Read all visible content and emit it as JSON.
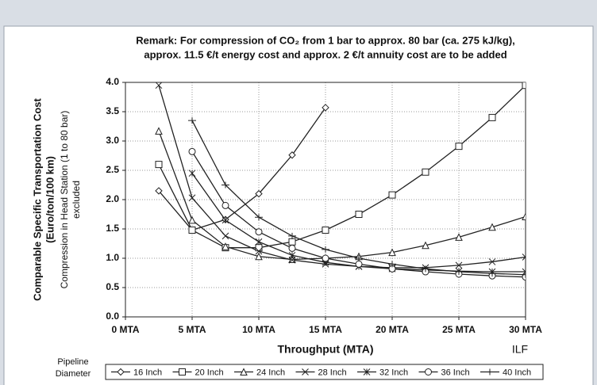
{
  "chart_data": {
    "type": "line",
    "title": [
      "Remark: For compression of CO₂ from 1 bar to approx. 80 bar (ca. 275 kJ/kg),",
      "approx. 11.5 €/t energy cost and approx. 2 €/t annuity cost are to be added"
    ],
    "ylabel": [
      "Comparable Specific Transportation Cost",
      "(Euro/ton/100 km)"
    ],
    "ylabel_note": [
      "Compression in Head Station (1 to 80 bar)",
      "excluded"
    ],
    "xlabel": "Throughput (MTA)",
    "annotation": "ILF",
    "legend_title": [
      "Pipeline",
      "Diameter"
    ],
    "x": [
      2.5,
      5,
      7.5,
      10,
      12.5,
      15,
      17.5,
      20,
      22.5,
      25,
      27.5,
      30
    ],
    "series": [
      {
        "name": "16 Inch",
        "marker": "diamond",
        "color": "#222222",
        "values": [
          2.15,
          1.48,
          1.66,
          2.1,
          2.76,
          3.57,
          null,
          null,
          null,
          null,
          null,
          null
        ]
      },
      {
        "name": "20 Inch",
        "marker": "square",
        "color": "#222222",
        "values": [
          2.6,
          1.48,
          1.18,
          1.18,
          1.28,
          1.48,
          1.75,
          2.08,
          2.47,
          2.91,
          3.4,
          3.95
        ]
      },
      {
        "name": "24 Inch",
        "marker": "triangle",
        "color": "#222222",
        "values": [
          3.17,
          1.65,
          1.2,
          1.03,
          0.98,
          1.0,
          1.03,
          1.1,
          1.22,
          1.36,
          1.53,
          1.71
        ]
      },
      {
        "name": "28 Inch",
        "marker": "x",
        "color": "#222222",
        "values": [
          3.95,
          2.03,
          1.38,
          1.12,
          0.97,
          0.9,
          0.86,
          0.84,
          0.84,
          0.88,
          0.94,
          1.02
        ]
      },
      {
        "name": "32 Inch",
        "marker": "star",
        "color": "#222222",
        "values": [
          null,
          2.45,
          1.65,
          1.28,
          1.05,
          0.93,
          0.86,
          0.82,
          0.8,
          0.78,
          0.77,
          0.77
        ]
      },
      {
        "name": "36 Inch",
        "marker": "circle",
        "color": "#222222",
        "values": [
          null,
          2.82,
          1.9,
          1.45,
          1.17,
          1.0,
          0.9,
          0.82,
          0.77,
          0.73,
          0.7,
          0.68
        ]
      },
      {
        "name": "40 Inch",
        "marker": "plus",
        "color": "#222222",
        "values": [
          null,
          3.35,
          2.25,
          1.7,
          1.38,
          1.15,
          1.0,
          0.9,
          0.82,
          0.77,
          0.74,
          0.72
        ]
      }
    ],
    "xlim": [
      0,
      30
    ],
    "xticks": [
      {
        "value": 0,
        "label": "0 MTA"
      },
      {
        "value": 5,
        "label": "5 MTA"
      },
      {
        "value": 10,
        "label": "10 MTA"
      },
      {
        "value": 15,
        "label": "15 MTA"
      },
      {
        "value": 20,
        "label": "20 MTA"
      },
      {
        "value": 25,
        "label": "25 MTA"
      },
      {
        "value": 30,
        "label": "30 MTA"
      }
    ],
    "ylim": [
      0,
      4
    ],
    "yticks": [
      {
        "value": 0,
        "label": "0.0"
      },
      {
        "value": 0.5,
        "label": "0.5"
      },
      {
        "value": 1,
        "label": "1.0"
      },
      {
        "value": 1.5,
        "label": "1.5"
      },
      {
        "value": 2,
        "label": "2.0"
      },
      {
        "value": 2.5,
        "label": "2.5"
      },
      {
        "value": 3,
        "label": "3.0"
      },
      {
        "value": 3.5,
        "label": "3.5"
      },
      {
        "value": 4,
        "label": "4.0"
      }
    ],
    "grid": true
  }
}
